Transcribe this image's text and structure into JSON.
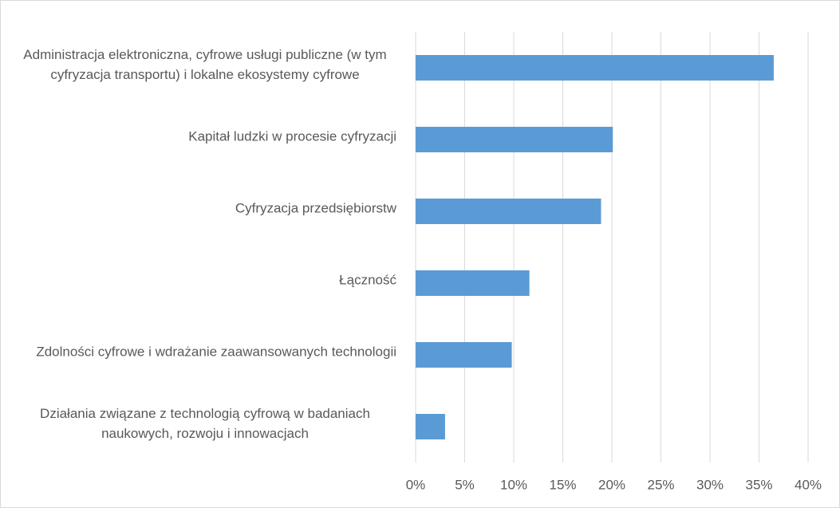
{
  "chart_data": {
    "type": "barh",
    "categories": [
      "Administracja elektroniczna, cyfrowe usługi publiczne (w tym cyfryzacja transportu) i lokalne ekosystemy cyfrowe",
      "Kapitał ludzki w procesie cyfryzacji",
      "Cyfryzacja przedsiębiorstw",
      "Łączność",
      "Zdolności cyfrowe i wdrażanie zaawansowanych technologii",
      "Działania związane z technologią cyfrową w badaniach naukowych, rozwoju i innowacjach"
    ],
    "values": [
      36.5,
      20.1,
      18.9,
      11.6,
      9.8,
      3.0
    ],
    "color": "#5b9bd5",
    "xlim": [
      0,
      40
    ],
    "xticks": [
      {
        "value": 0,
        "label": "0%"
      },
      {
        "value": 5,
        "label": "5%"
      },
      {
        "value": 10,
        "label": "10%"
      },
      {
        "value": 15,
        "label": "15%"
      },
      {
        "value": 20,
        "label": "20%"
      },
      {
        "value": 25,
        "label": "25%"
      },
      {
        "value": 30,
        "label": "30%"
      },
      {
        "value": 35,
        "label": "35%"
      },
      {
        "value": 40,
        "label": "40%"
      }
    ],
    "grid": true
  }
}
